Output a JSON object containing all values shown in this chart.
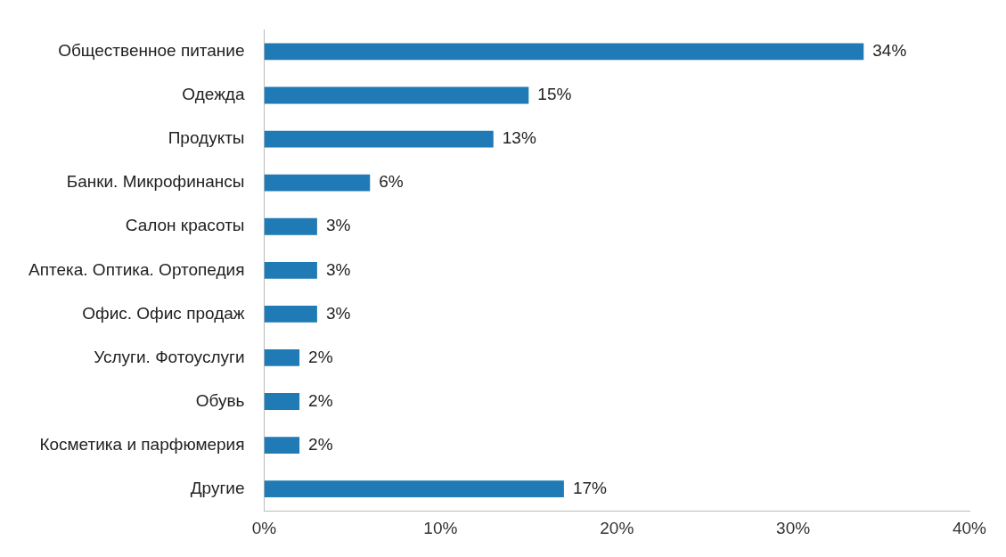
{
  "chart_data": {
    "type": "bar",
    "orientation": "horizontal",
    "categories": [
      "Общественное питание",
      "Одежда",
      "Продукты",
      "Банки. Микрофинансы",
      "Салон красоты",
      "Аптека. Оптика. Ортопедия",
      "Офис. Офис продаж",
      "Услуги. Фотоуслуги",
      "Обувь",
      "Косметика и парфюмерия",
      "Другие"
    ],
    "values": [
      34,
      15,
      13,
      6,
      3,
      3,
      3,
      2,
      2,
      2,
      17
    ],
    "value_labels": [
      "34%",
      "15%",
      "13%",
      "6%",
      "3%",
      "3%",
      "3%",
      "2%",
      "2%",
      "2%",
      "17%"
    ],
    "color": "#1f7ab5",
    "xlim": [
      0,
      40
    ],
    "xticks": [
      {
        "value": 0,
        "label": "0%"
      },
      {
        "value": 10,
        "label": "10%"
      },
      {
        "value": 20,
        "label": "20%"
      },
      {
        "value": 30,
        "label": "30%"
      },
      {
        "value": 40,
        "label": "40%"
      }
    ],
    "grid": false,
    "legend": false
  }
}
